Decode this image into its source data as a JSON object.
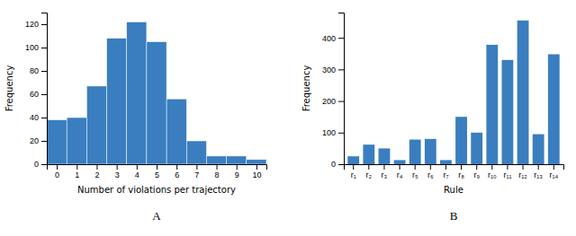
{
  "chart_data": [
    {
      "type": "bar",
      "x": [
        0,
        1,
        2,
        3,
        4,
        5,
        6,
        7,
        8,
        9,
        10
      ],
      "values": [
        38,
        40,
        67,
        108,
        122,
        105,
        56,
        20,
        7,
        7,
        4
      ],
      "x_label": "Number of violations per trajectory",
      "y_label": "Frequency",
      "xlim": [
        -0.5,
        10.5
      ],
      "xticks": [
        0,
        1,
        2,
        3,
        4,
        5,
        6,
        7,
        8,
        9,
        10
      ],
      "ylim": [
        0,
        130
      ],
      "yticks": [
        0,
        20,
        40,
        60,
        80,
        100,
        120
      ],
      "color": "#3a7ebf",
      "annotations": [
        "A"
      ]
    },
    {
      "type": "bar",
      "categories": [
        "r₁",
        "r₂",
        "r₃",
        "r₄",
        "r₅",
        "r₆",
        "r₇",
        "r₈",
        "r₉",
        "r₁₀",
        "r₁₁",
        "r₁₂",
        "r₁₃",
        "r₁₄"
      ],
      "values": [
        25,
        62,
        50,
        13,
        78,
        80,
        13,
        150,
        100,
        378,
        330,
        455,
        95,
        348
      ],
      "x_label": "Rule",
      "y_label": "Frequency",
      "ylim": [
        0,
        480
      ],
      "yticks": [
        0,
        100,
        200,
        300,
        400
      ],
      "color": "#3a7ebf",
      "annotations": [
        "B"
      ]
    }
  ]
}
